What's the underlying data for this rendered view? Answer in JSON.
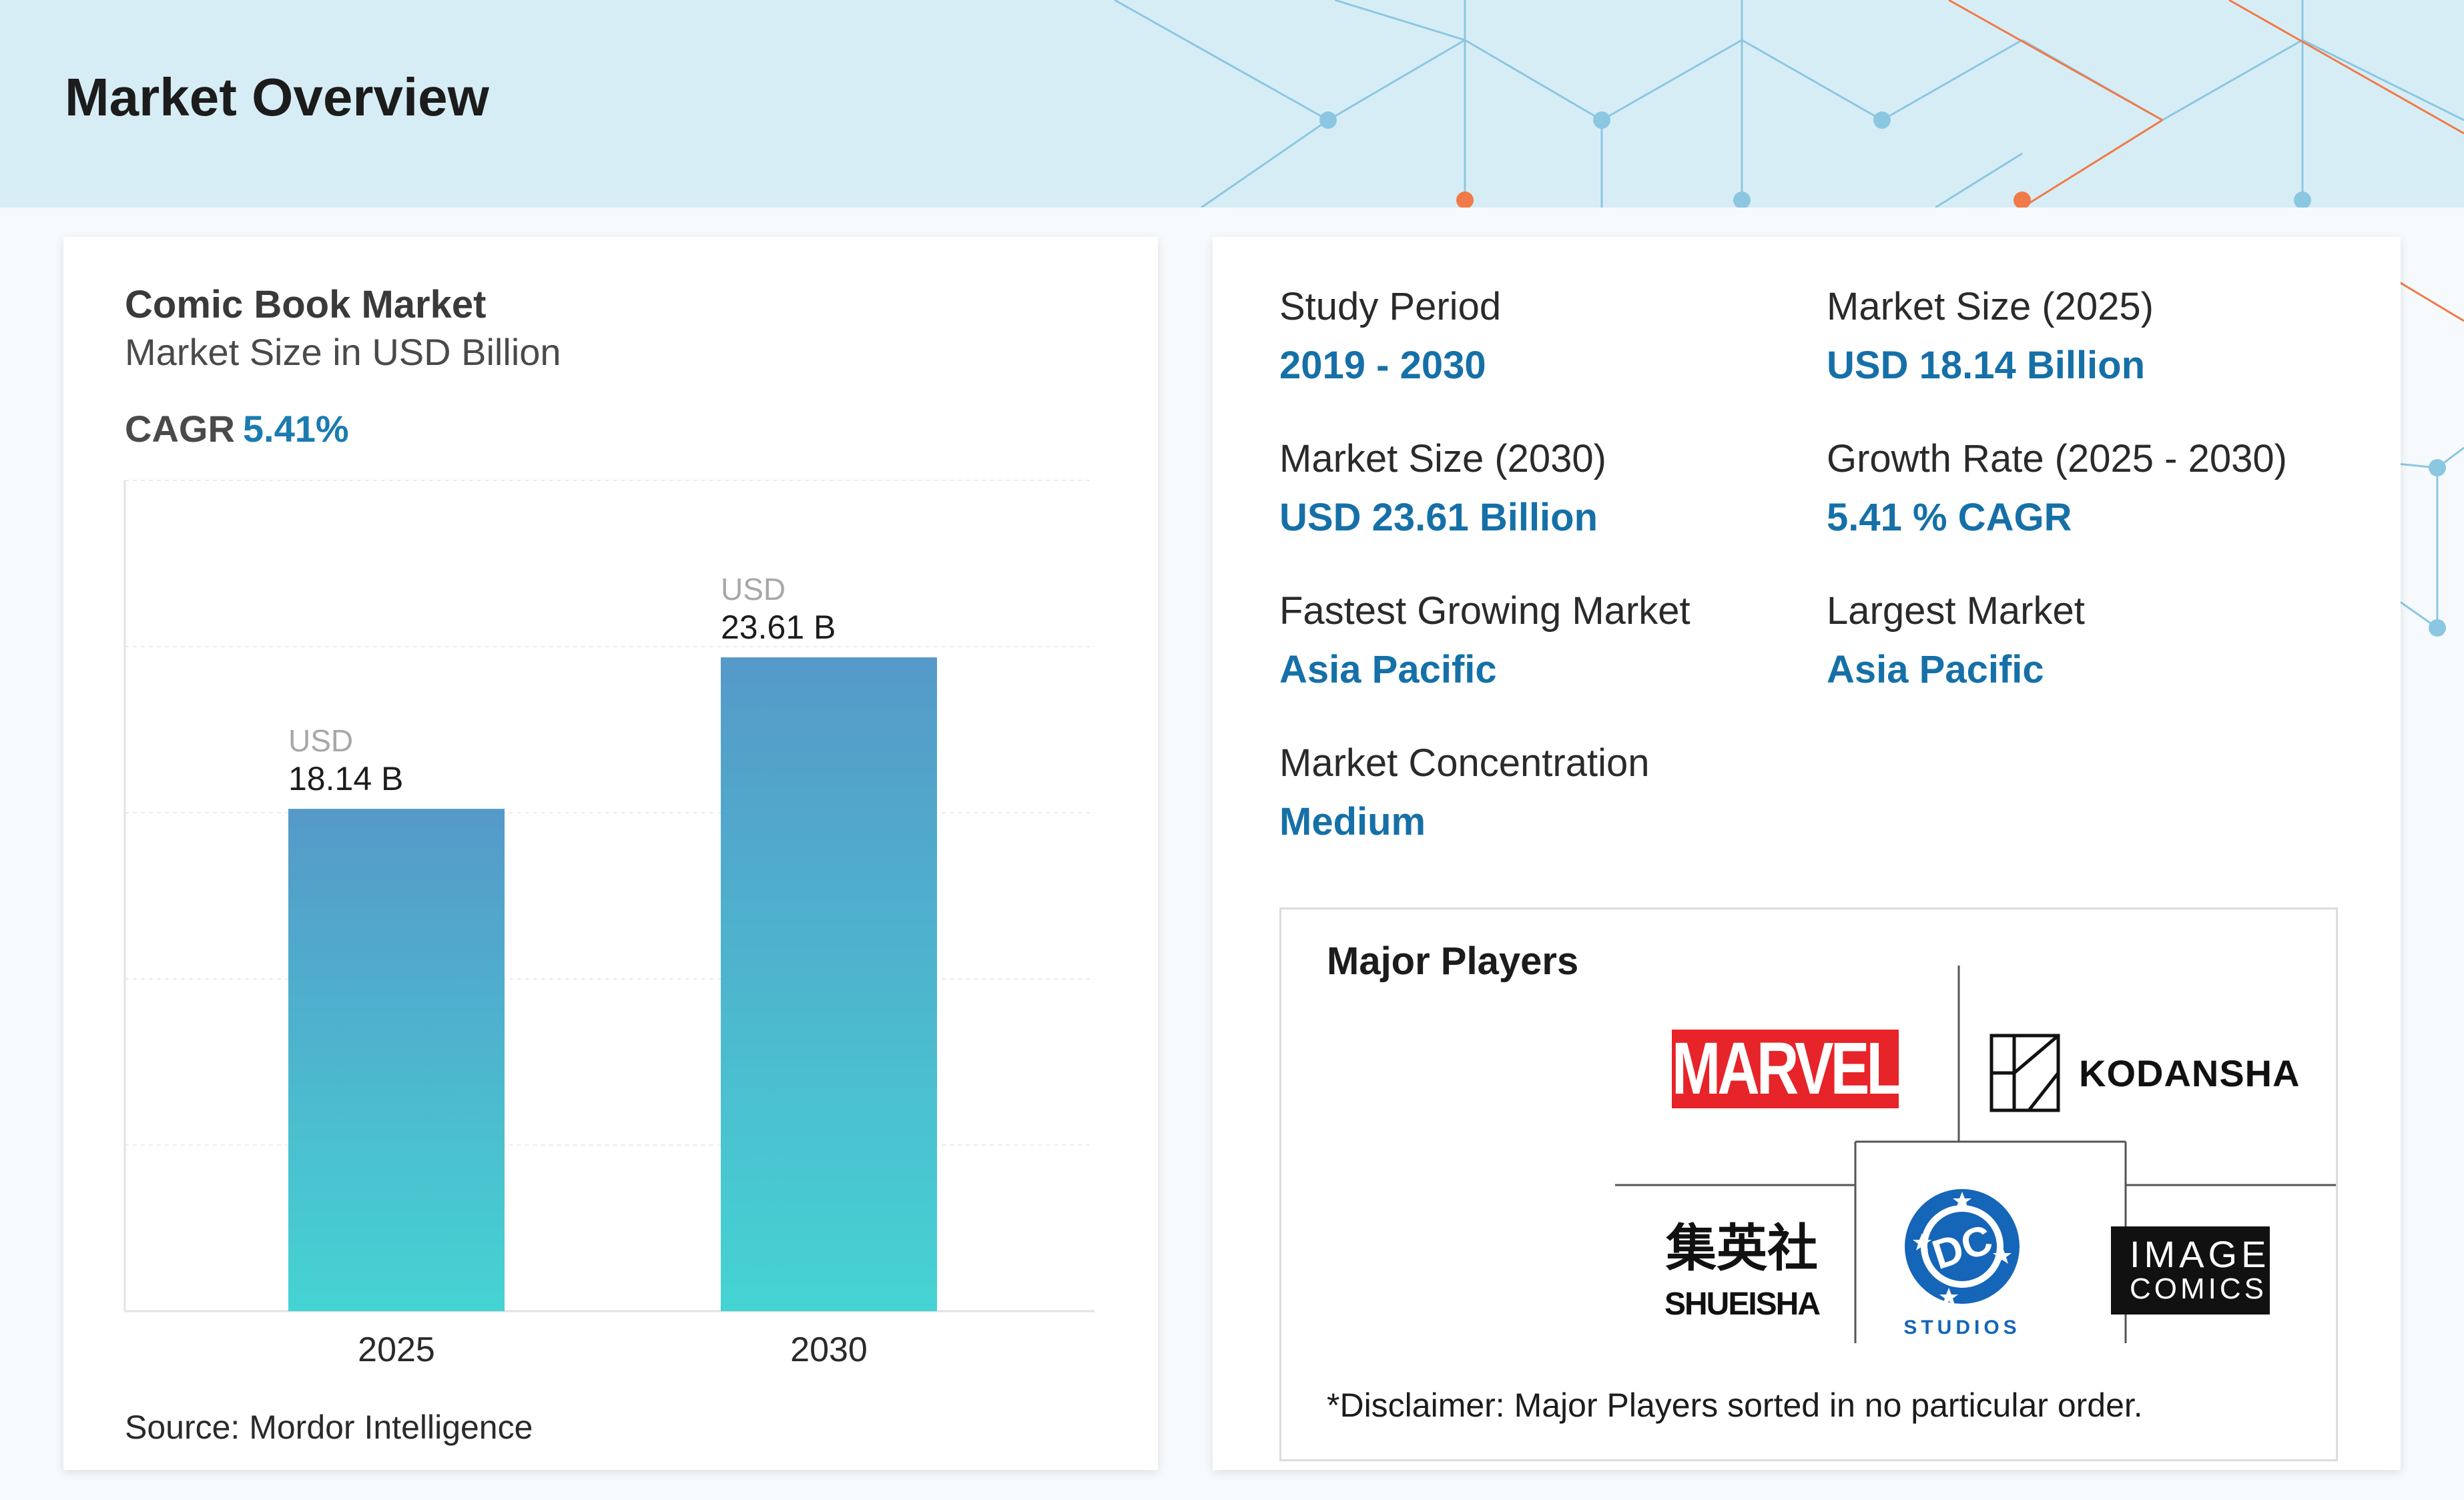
{
  "header": {
    "title": "Market Overview"
  },
  "chart_data": {
    "type": "bar",
    "title": "Comic Book Market",
    "subtitle": "Market Size in USD Billion",
    "categories": [
      "2025",
      "2030"
    ],
    "values": [
      18.14,
      23.61
    ],
    "value_labels": [
      "18.14 B",
      "23.61 B"
    ],
    "value_prefix": "USD",
    "ylim": [
      0,
      30
    ],
    "grid": true,
    "legend": "none",
    "bar_gradient": [
      "#5599c9",
      "#45d3d3"
    ],
    "cagr_label": "CAGR",
    "cagr_value": "5.41%",
    "source": "Source: Mordor Intelligence"
  },
  "stats": [
    {
      "label": "Study Period",
      "value": "2019 - 2030"
    },
    {
      "label": "Market Size (2025)",
      "value": "USD 18.14 Billion"
    },
    {
      "label": "Market Size (2030)",
      "value": "USD 23.61 Billion"
    },
    {
      "label": "Growth Rate (2025 - 2030)",
      "value": "5.41 % CAGR"
    },
    {
      "label": "Fastest Growing Market",
      "value": "Asia Pacific"
    },
    {
      "label": "Largest Market",
      "value": "Asia Pacific"
    },
    {
      "label": "Market Concentration",
      "value": "Medium"
    }
  ],
  "players": {
    "title": "Major Players",
    "logos": {
      "marvel": "MARVEL",
      "kodansha": "KODANSHA",
      "shueisha_kanji": "集英社",
      "shueisha": "SHUEISHA",
      "dc": "DC",
      "dc_studios": "STUDIOS",
      "image_line1": "IMAGE",
      "image_line2": "COMICS"
    },
    "disclaimer": "*Disclaimer: Major Players sorted in no particular order."
  },
  "colors": {
    "accent": "#1670a8",
    "header_bg": "#d7edf5",
    "network_blue": "#8cc7e2",
    "network_orange": "#f07a48",
    "marvel_red": "#e62429"
  }
}
